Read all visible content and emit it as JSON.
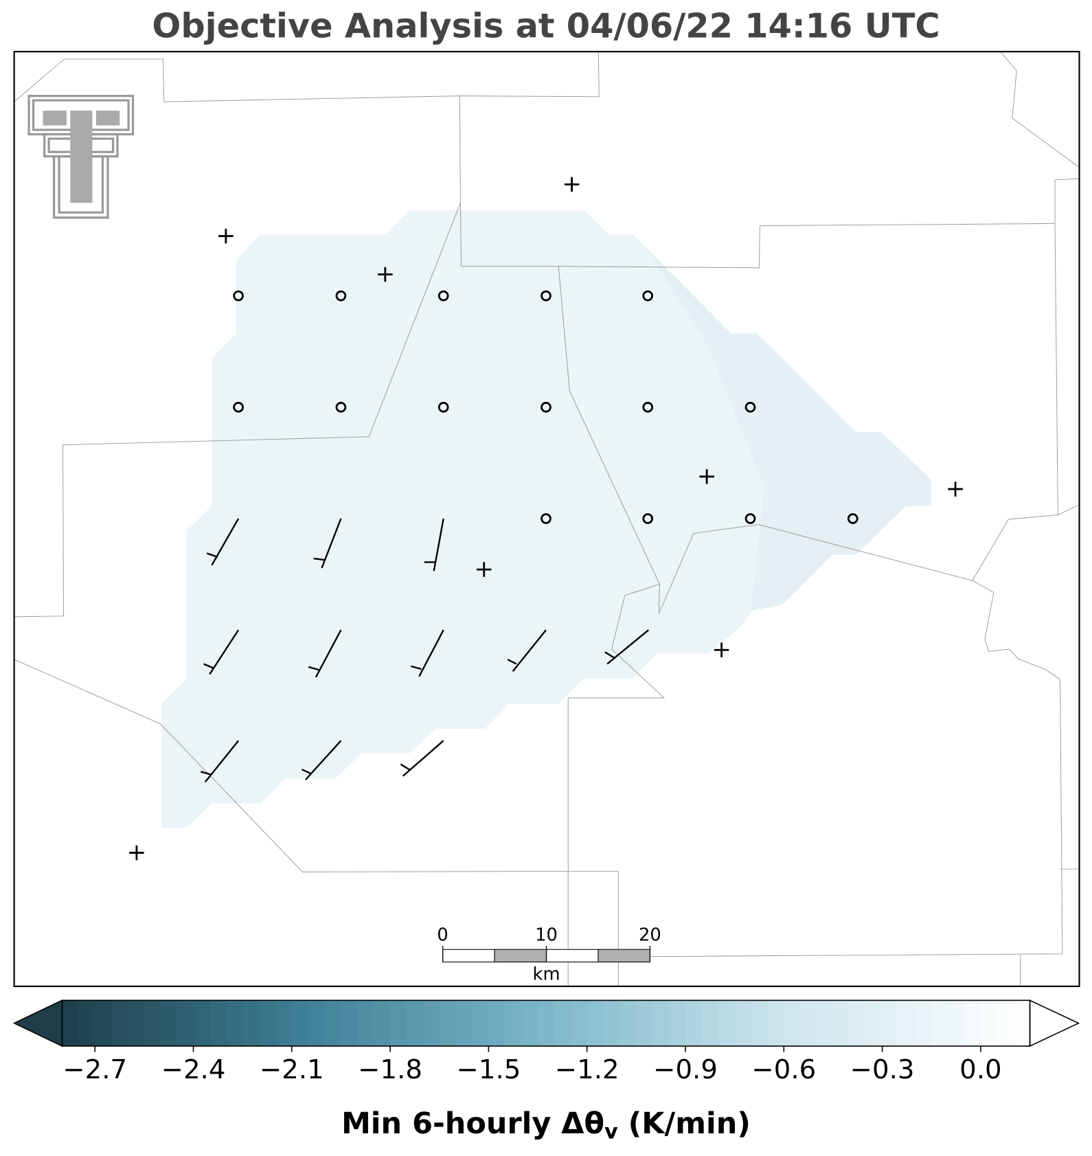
{
  "title": "Objective Analysis at 04/06/22 14:16 UTC",
  "colorbar": {
    "label": [
      "Min 6-hourly Δθ",
      "v",
      " (K/min)"
    ],
    "lim": [
      -2.8,
      0.15
    ],
    "ticks": [
      {
        "value": -2.7,
        "label": "−2.7"
      },
      {
        "value": -2.4,
        "label": "−2.4"
      },
      {
        "value": -2.1,
        "label": "−2.1"
      },
      {
        "value": -1.8,
        "label": "−1.8"
      },
      {
        "value": -1.5,
        "label": "−1.5"
      },
      {
        "value": -1.2,
        "label": "−1.2"
      },
      {
        "value": -0.9,
        "label": "−0.9"
      },
      {
        "value": -0.6,
        "label": "−0.6"
      },
      {
        "value": -0.3,
        "label": "−0.3"
      },
      {
        "value": 0,
        "label": "0.0"
      }
    ],
    "colors": [
      "#1f3e4a",
      "#3f8096",
      "#7db7c9",
      "#cfe6ee",
      "#ffffff"
    ]
  },
  "scale_bar": {
    "ticks": [
      0,
      10,
      20
    ],
    "unit": "km"
  }
}
